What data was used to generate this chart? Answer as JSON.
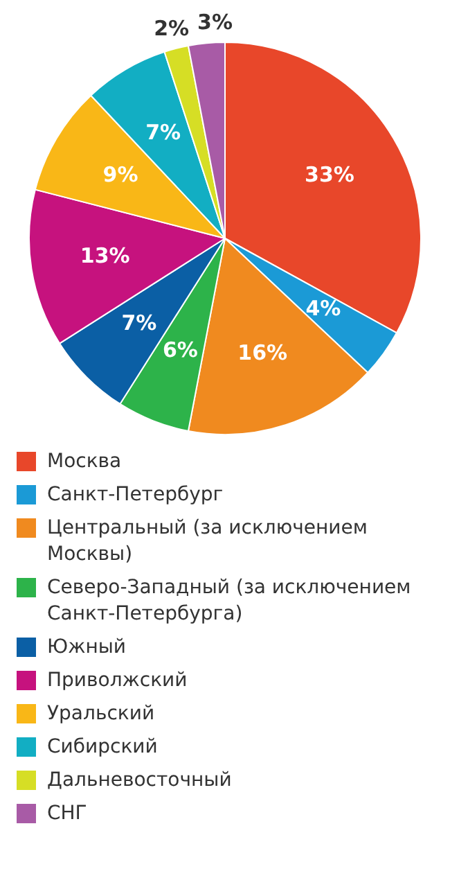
{
  "chart_data": {
    "type": "pie",
    "categories": [
      "Москва",
      "Санкт-Петербург",
      "Центральный (за исключением Москвы)",
      "Северо-Западный (за исключением Санкт-Петербурга)",
      "Южный",
      "Приволжский",
      "Уральский",
      "Сибирский",
      "Дальневосточный",
      "СНГ"
    ],
    "values": [
      33,
      4,
      16,
      6,
      7,
      13,
      9,
      7,
      2,
      3
    ],
    "value_labels": [
      "33%",
      "4%",
      "16%",
      "6%",
      "7%",
      "13%",
      "9%",
      "7%",
      "2%",
      "3%"
    ],
    "colors": [
      "#e8472a",
      "#1b9ad6",
      "#f08a1f",
      "#2db34a",
      "#0b5fa5",
      "#c6127e",
      "#f9b717",
      "#12aec3",
      "#d6de25",
      "#a85ba6"
    ],
    "legend": "bottom"
  }
}
